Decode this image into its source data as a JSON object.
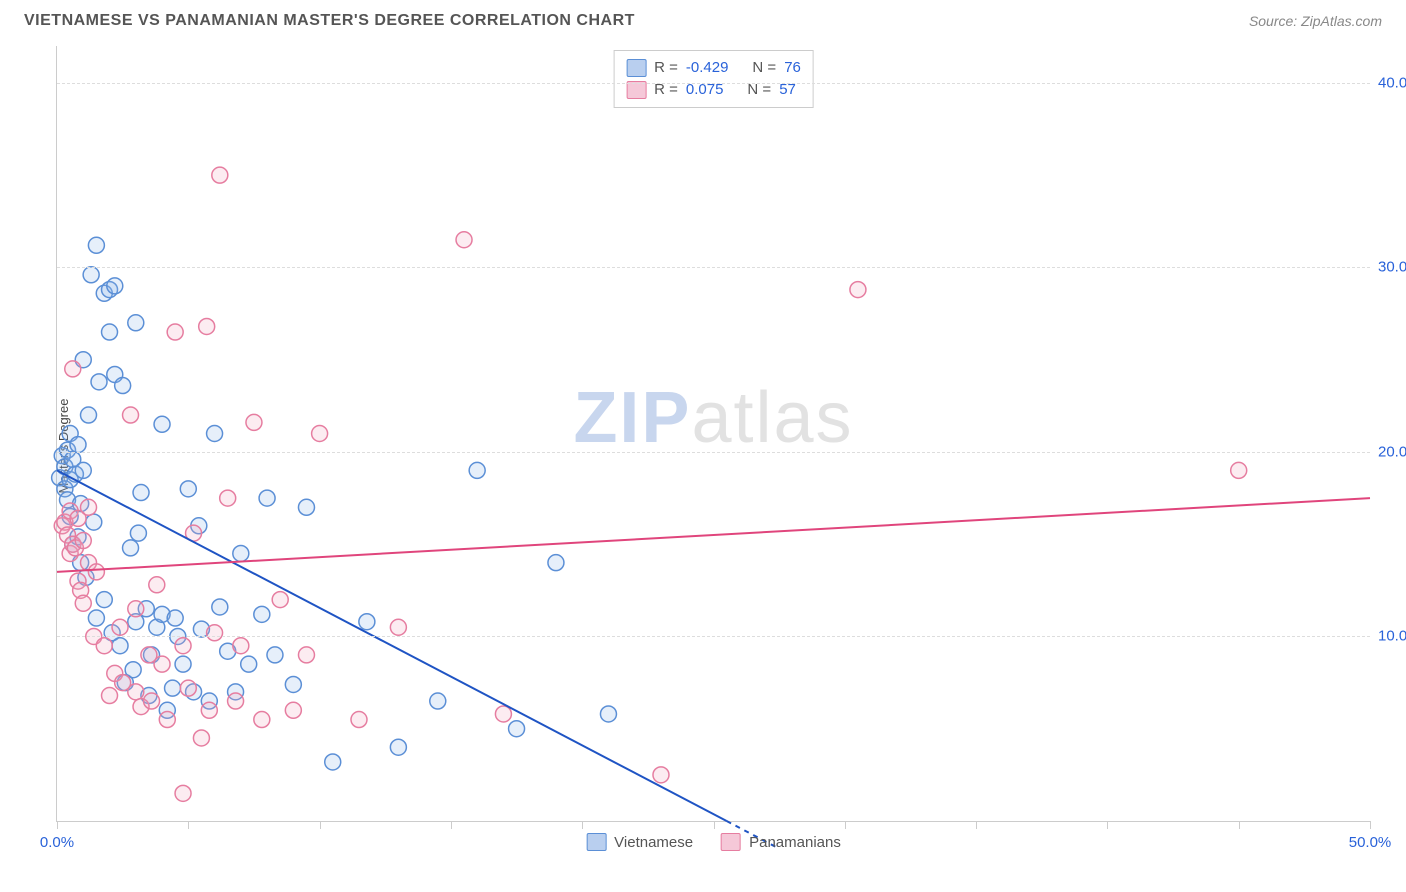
{
  "title": "VIETNAMESE VS PANAMANIAN MASTER'S DEGREE CORRELATION CHART",
  "source": "Source: ZipAtlas.com",
  "watermark": {
    "part1": "ZIP",
    "part2": "atlas"
  },
  "chart": {
    "type": "scatter",
    "ylabel": "Master's Degree",
    "xlim": [
      0,
      50
    ],
    "ylim": [
      0,
      42
    ],
    "xticks": [
      0,
      5,
      10,
      15,
      20,
      25,
      30,
      35,
      40,
      45,
      50
    ],
    "xtick_labels": {
      "0": "0.0%",
      "50": "50.0%"
    },
    "yticks": [
      10,
      20,
      30,
      40
    ],
    "ytick_labels": {
      "10": "10.0%",
      "20": "20.0%",
      "30": "30.0%",
      "40": "40.0%"
    },
    "ytick_color": "#2962d9",
    "xtick_color_left": "#2962d9",
    "xtick_color_right": "#2962d9",
    "grid_color": "#dddddd",
    "background_color": "#ffffff",
    "marker_radius": 8,
    "marker_stroke_width": 1.5,
    "marker_fill_opacity": 0.22,
    "series": [
      {
        "name": "Vietnamese",
        "color_stroke": "#5b8fd6",
        "color_fill": "#8fb4e6",
        "legend_swatch_fill": "#b9cfef",
        "legend_swatch_stroke": "#5b8fd6",
        "R": "-0.429",
        "N": "76",
        "regression": {
          "x1": 0,
          "y1": 19.0,
          "x2": 25.5,
          "y2": 0,
          "x2_dash": 27.5,
          "y2_dash": -1.5,
          "color": "#1f54c4",
          "width": 2
        },
        "points": [
          [
            0.1,
            18.6
          ],
          [
            0.2,
            19.8
          ],
          [
            0.3,
            18.0
          ],
          [
            0.3,
            19.2
          ],
          [
            0.4,
            17.4
          ],
          [
            0.4,
            20.1
          ],
          [
            0.5,
            18.5
          ],
          [
            0.5,
            21.0
          ],
          [
            0.5,
            16.5
          ],
          [
            0.6,
            19.6
          ],
          [
            0.6,
            15.0
          ],
          [
            0.7,
            18.8
          ],
          [
            0.8,
            15.4
          ],
          [
            0.8,
            20.4
          ],
          [
            0.9,
            14.0
          ],
          [
            0.9,
            17.2
          ],
          [
            1.0,
            19.0
          ],
          [
            1.0,
            25.0
          ],
          [
            1.1,
            13.2
          ],
          [
            1.2,
            22.0
          ],
          [
            1.3,
            29.6
          ],
          [
            1.4,
            16.2
          ],
          [
            1.5,
            31.2
          ],
          [
            1.5,
            11.0
          ],
          [
            1.6,
            23.8
          ],
          [
            1.8,
            12.0
          ],
          [
            1.8,
            28.6
          ],
          [
            2.0,
            28.8
          ],
          [
            2.0,
            26.5
          ],
          [
            2.1,
            10.2
          ],
          [
            2.2,
            24.2
          ],
          [
            2.2,
            29.0
          ],
          [
            2.4,
            9.5
          ],
          [
            2.5,
            23.6
          ],
          [
            2.6,
            7.5
          ],
          [
            2.8,
            14.8
          ],
          [
            2.9,
            8.2
          ],
          [
            3.0,
            27.0
          ],
          [
            3.0,
            10.8
          ],
          [
            3.1,
            15.6
          ],
          [
            3.2,
            17.8
          ],
          [
            3.4,
            11.5
          ],
          [
            3.5,
            6.8
          ],
          [
            3.6,
            9.0
          ],
          [
            3.8,
            10.5
          ],
          [
            4.0,
            21.5
          ],
          [
            4.0,
            11.2
          ],
          [
            4.2,
            6.0
          ],
          [
            4.4,
            7.2
          ],
          [
            4.5,
            11.0
          ],
          [
            4.6,
            10.0
          ],
          [
            4.8,
            8.5
          ],
          [
            5.0,
            18.0
          ],
          [
            5.2,
            7.0
          ],
          [
            5.4,
            16.0
          ],
          [
            5.5,
            10.4
          ],
          [
            5.8,
            6.5
          ],
          [
            6.0,
            21.0
          ],
          [
            6.2,
            11.6
          ],
          [
            6.5,
            9.2
          ],
          [
            6.8,
            7.0
          ],
          [
            7.0,
            14.5
          ],
          [
            7.3,
            8.5
          ],
          [
            7.8,
            11.2
          ],
          [
            8.0,
            17.5
          ],
          [
            8.3,
            9.0
          ],
          [
            9.0,
            7.4
          ],
          [
            9.5,
            17.0
          ],
          [
            10.5,
            3.2
          ],
          [
            11.8,
            10.8
          ],
          [
            13.0,
            4.0
          ],
          [
            14.5,
            6.5
          ],
          [
            16.0,
            19.0
          ],
          [
            17.5,
            5.0
          ],
          [
            19.0,
            14.0
          ],
          [
            21.0,
            5.8
          ]
        ]
      },
      {
        "name": "Panamanians",
        "color_stroke": "#e67da0",
        "color_fill": "#f0a8c0",
        "legend_swatch_fill": "#f5c8d8",
        "legend_swatch_stroke": "#e67da0",
        "R": "0.075",
        "N": "57",
        "regression": {
          "x1": 0,
          "y1": 13.5,
          "x2": 50,
          "y2": 17.5,
          "color": "#e0457c",
          "width": 2
        },
        "points": [
          [
            0.2,
            16.0
          ],
          [
            0.3,
            16.2
          ],
          [
            0.4,
            15.5
          ],
          [
            0.5,
            16.8
          ],
          [
            0.5,
            14.5
          ],
          [
            0.6,
            15.0
          ],
          [
            0.6,
            24.5
          ],
          [
            0.7,
            14.8
          ],
          [
            0.8,
            13.0
          ],
          [
            0.8,
            16.4
          ],
          [
            0.9,
            12.5
          ],
          [
            1.0,
            15.2
          ],
          [
            1.0,
            11.8
          ],
          [
            1.2,
            14.0
          ],
          [
            1.2,
            17.0
          ],
          [
            1.4,
            10.0
          ],
          [
            1.5,
            13.5
          ],
          [
            1.8,
            9.5
          ],
          [
            2.0,
            6.8
          ],
          [
            2.2,
            8.0
          ],
          [
            2.4,
            10.5
          ],
          [
            2.5,
            7.5
          ],
          [
            2.8,
            22.0
          ],
          [
            3.0,
            7.0
          ],
          [
            3.0,
            11.5
          ],
          [
            3.2,
            6.2
          ],
          [
            3.5,
            9.0
          ],
          [
            3.6,
            6.5
          ],
          [
            3.8,
            12.8
          ],
          [
            4.0,
            8.5
          ],
          [
            4.2,
            5.5
          ],
          [
            4.5,
            26.5
          ],
          [
            4.8,
            9.5
          ],
          [
            4.8,
            1.5
          ],
          [
            5.0,
            7.2
          ],
          [
            5.2,
            15.6
          ],
          [
            5.5,
            4.5
          ],
          [
            5.7,
            26.8
          ],
          [
            5.8,
            6.0
          ],
          [
            6.0,
            10.2
          ],
          [
            6.2,
            35.0
          ],
          [
            6.5,
            17.5
          ],
          [
            6.8,
            6.5
          ],
          [
            7.0,
            9.5
          ],
          [
            7.5,
            21.6
          ],
          [
            7.8,
            5.5
          ],
          [
            8.5,
            12.0
          ],
          [
            9.0,
            6.0
          ],
          [
            9.5,
            9.0
          ],
          [
            10.0,
            21.0
          ],
          [
            11.5,
            5.5
          ],
          [
            13.0,
            10.5
          ],
          [
            15.5,
            31.5
          ],
          [
            17.0,
            5.8
          ],
          [
            23.0,
            2.5
          ],
          [
            30.5,
            28.8
          ],
          [
            45.0,
            19.0
          ]
        ]
      }
    ],
    "legend_labels": {
      "R_prefix": "R = ",
      "N_prefix": "N = "
    },
    "footer": [
      {
        "label": "Vietnamese",
        "swatch_fill": "#b9cfef",
        "swatch_stroke": "#5b8fd6"
      },
      {
        "label": "Panamanians",
        "swatch_fill": "#f5c8d8",
        "swatch_stroke": "#e67da0"
      }
    ]
  }
}
